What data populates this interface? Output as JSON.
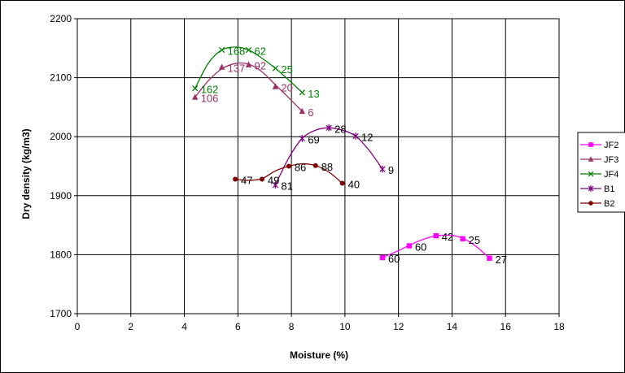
{
  "chart_data": {
    "type": "scatter",
    "xlabel": "Moisture (%)",
    "ylabel": "Dry density (kg/m3)",
    "xlim": [
      0,
      18
    ],
    "ylim": [
      1700,
      2200
    ],
    "xticks": [
      "0",
      "2",
      "4",
      "6",
      "8",
      "10",
      "12",
      "14",
      "16",
      "18"
    ],
    "yticks": [
      "1700",
      "1800",
      "1900",
      "2000",
      "2100",
      "2200"
    ],
    "grid": true,
    "legend_position": "right",
    "series": [
      {
        "name": "JF2",
        "color": "#ff00ff",
        "marker": "square",
        "label_color": "#000000",
        "x": [
          11.4,
          12.4,
          13.4,
          14.4,
          15.4
        ],
        "y": [
          1795,
          1815,
          1832,
          1827,
          1794
        ],
        "labels": [
          "60",
          "60",
          "42",
          "25",
          "27"
        ],
        "curve": [
          [
            11.4,
            1795
          ],
          [
            12.0,
            1807
          ],
          [
            12.7,
            1822
          ],
          [
            13.3,
            1831
          ],
          [
            13.9,
            1833
          ],
          [
            14.4,
            1828
          ],
          [
            14.9,
            1814
          ],
          [
            15.4,
            1794
          ]
        ]
      },
      {
        "name": "JF3",
        "color": "#993366",
        "marker": "triangle",
        "label_color": "#993366",
        "x": [
          4.4,
          5.4,
          6.4,
          7.4,
          8.4
        ],
        "y": [
          2067,
          2118,
          2122,
          2085,
          2043
        ],
        "labels": [
          "106",
          "137",
          "92",
          "20",
          "6"
        ],
        "curve": [
          [
            4.4,
            2067
          ],
          [
            4.9,
            2095
          ],
          [
            5.4,
            2115
          ],
          [
            5.9,
            2124
          ],
          [
            6.4,
            2123
          ],
          [
            6.9,
            2110
          ],
          [
            7.4,
            2088
          ],
          [
            7.9,
            2066
          ],
          [
            8.4,
            2043
          ]
        ]
      },
      {
        "name": "JF4",
        "color": "#008000",
        "marker": "x",
        "label_color": "#008000",
        "x": [
          4.4,
          5.4,
          6.4,
          7.4,
          8.4
        ],
        "y": [
          2082,
          2147,
          2147,
          2116,
          2075
        ],
        "labels": [
          "162",
          "168",
          "62",
          "25",
          "13"
        ],
        "curve": [
          [
            4.4,
            2082
          ],
          [
            4.9,
            2125
          ],
          [
            5.4,
            2147
          ],
          [
            5.9,
            2152
          ],
          [
            6.4,
            2147
          ],
          [
            6.9,
            2133
          ],
          [
            7.4,
            2116
          ],
          [
            7.9,
            2096
          ],
          [
            8.4,
            2075
          ]
        ]
      },
      {
        "name": "B1",
        "color": "#800080",
        "marker": "asterisk",
        "label_color": "#000000",
        "x": [
          7.4,
          8.4,
          9.4,
          10.4,
          11.4
        ],
        "y": [
          1918,
          1997,
          2015,
          2001,
          1945
        ],
        "labels": [
          "81",
          "69",
          "28",
          "12",
          "9"
        ],
        "curve": [
          [
            7.4,
            1918
          ],
          [
            7.9,
            1964
          ],
          [
            8.4,
            1997
          ],
          [
            8.9,
            2011
          ],
          [
            9.4,
            2015
          ],
          [
            9.9,
            2011
          ],
          [
            10.4,
            2001
          ],
          [
            10.9,
            1977
          ],
          [
            11.4,
            1945
          ]
        ]
      },
      {
        "name": "B2",
        "color": "#800000",
        "marker": "circle",
        "label_color": "#000000",
        "x": [
          5.9,
          6.9,
          7.9,
          8.9,
          9.9
        ],
        "y": [
          1928,
          1928,
          1950,
          1951,
          1921
        ],
        "labels": [
          "47",
          "49",
          "86",
          "88",
          "40"
        ],
        "curve": [
          [
            5.9,
            1928
          ],
          [
            6.4,
            1926
          ],
          [
            6.9,
            1929
          ],
          [
            7.4,
            1942
          ],
          [
            7.9,
            1950
          ],
          [
            8.4,
            1954
          ],
          [
            8.9,
            1951
          ],
          [
            9.4,
            1940
          ],
          [
            9.9,
            1921
          ]
        ]
      }
    ]
  }
}
